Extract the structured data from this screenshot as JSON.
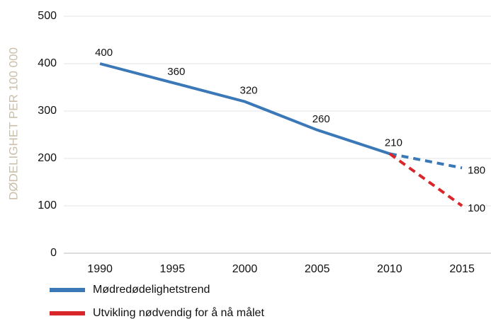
{
  "chart_data": {
    "type": "line",
    "y_label": "DØDELIGHET PER 100 000",
    "x": [
      1990,
      1995,
      2000,
      2005,
      2010,
      2015
    ],
    "xlim": [
      1987.5,
      2017
    ],
    "xticks": [
      1990,
      1995,
      2000,
      2005,
      2010,
      2015
    ],
    "ylim": [
      0,
      500
    ],
    "yticks": [
      0,
      100,
      200,
      300,
      400,
      500
    ],
    "grid": true,
    "series": [
      {
        "name": "Mødredødelighetstrend",
        "color": "#3a78b8",
        "values": [
          400,
          360,
          320,
          260,
          210,
          180
        ],
        "dashed_from": 2010
      },
      {
        "name": "Utvikling nødvendig for å nå målet",
        "color": "#d9262b",
        "values": [
          null,
          null,
          null,
          null,
          210,
          100
        ],
        "dashed_from": 2010
      }
    ]
  }
}
